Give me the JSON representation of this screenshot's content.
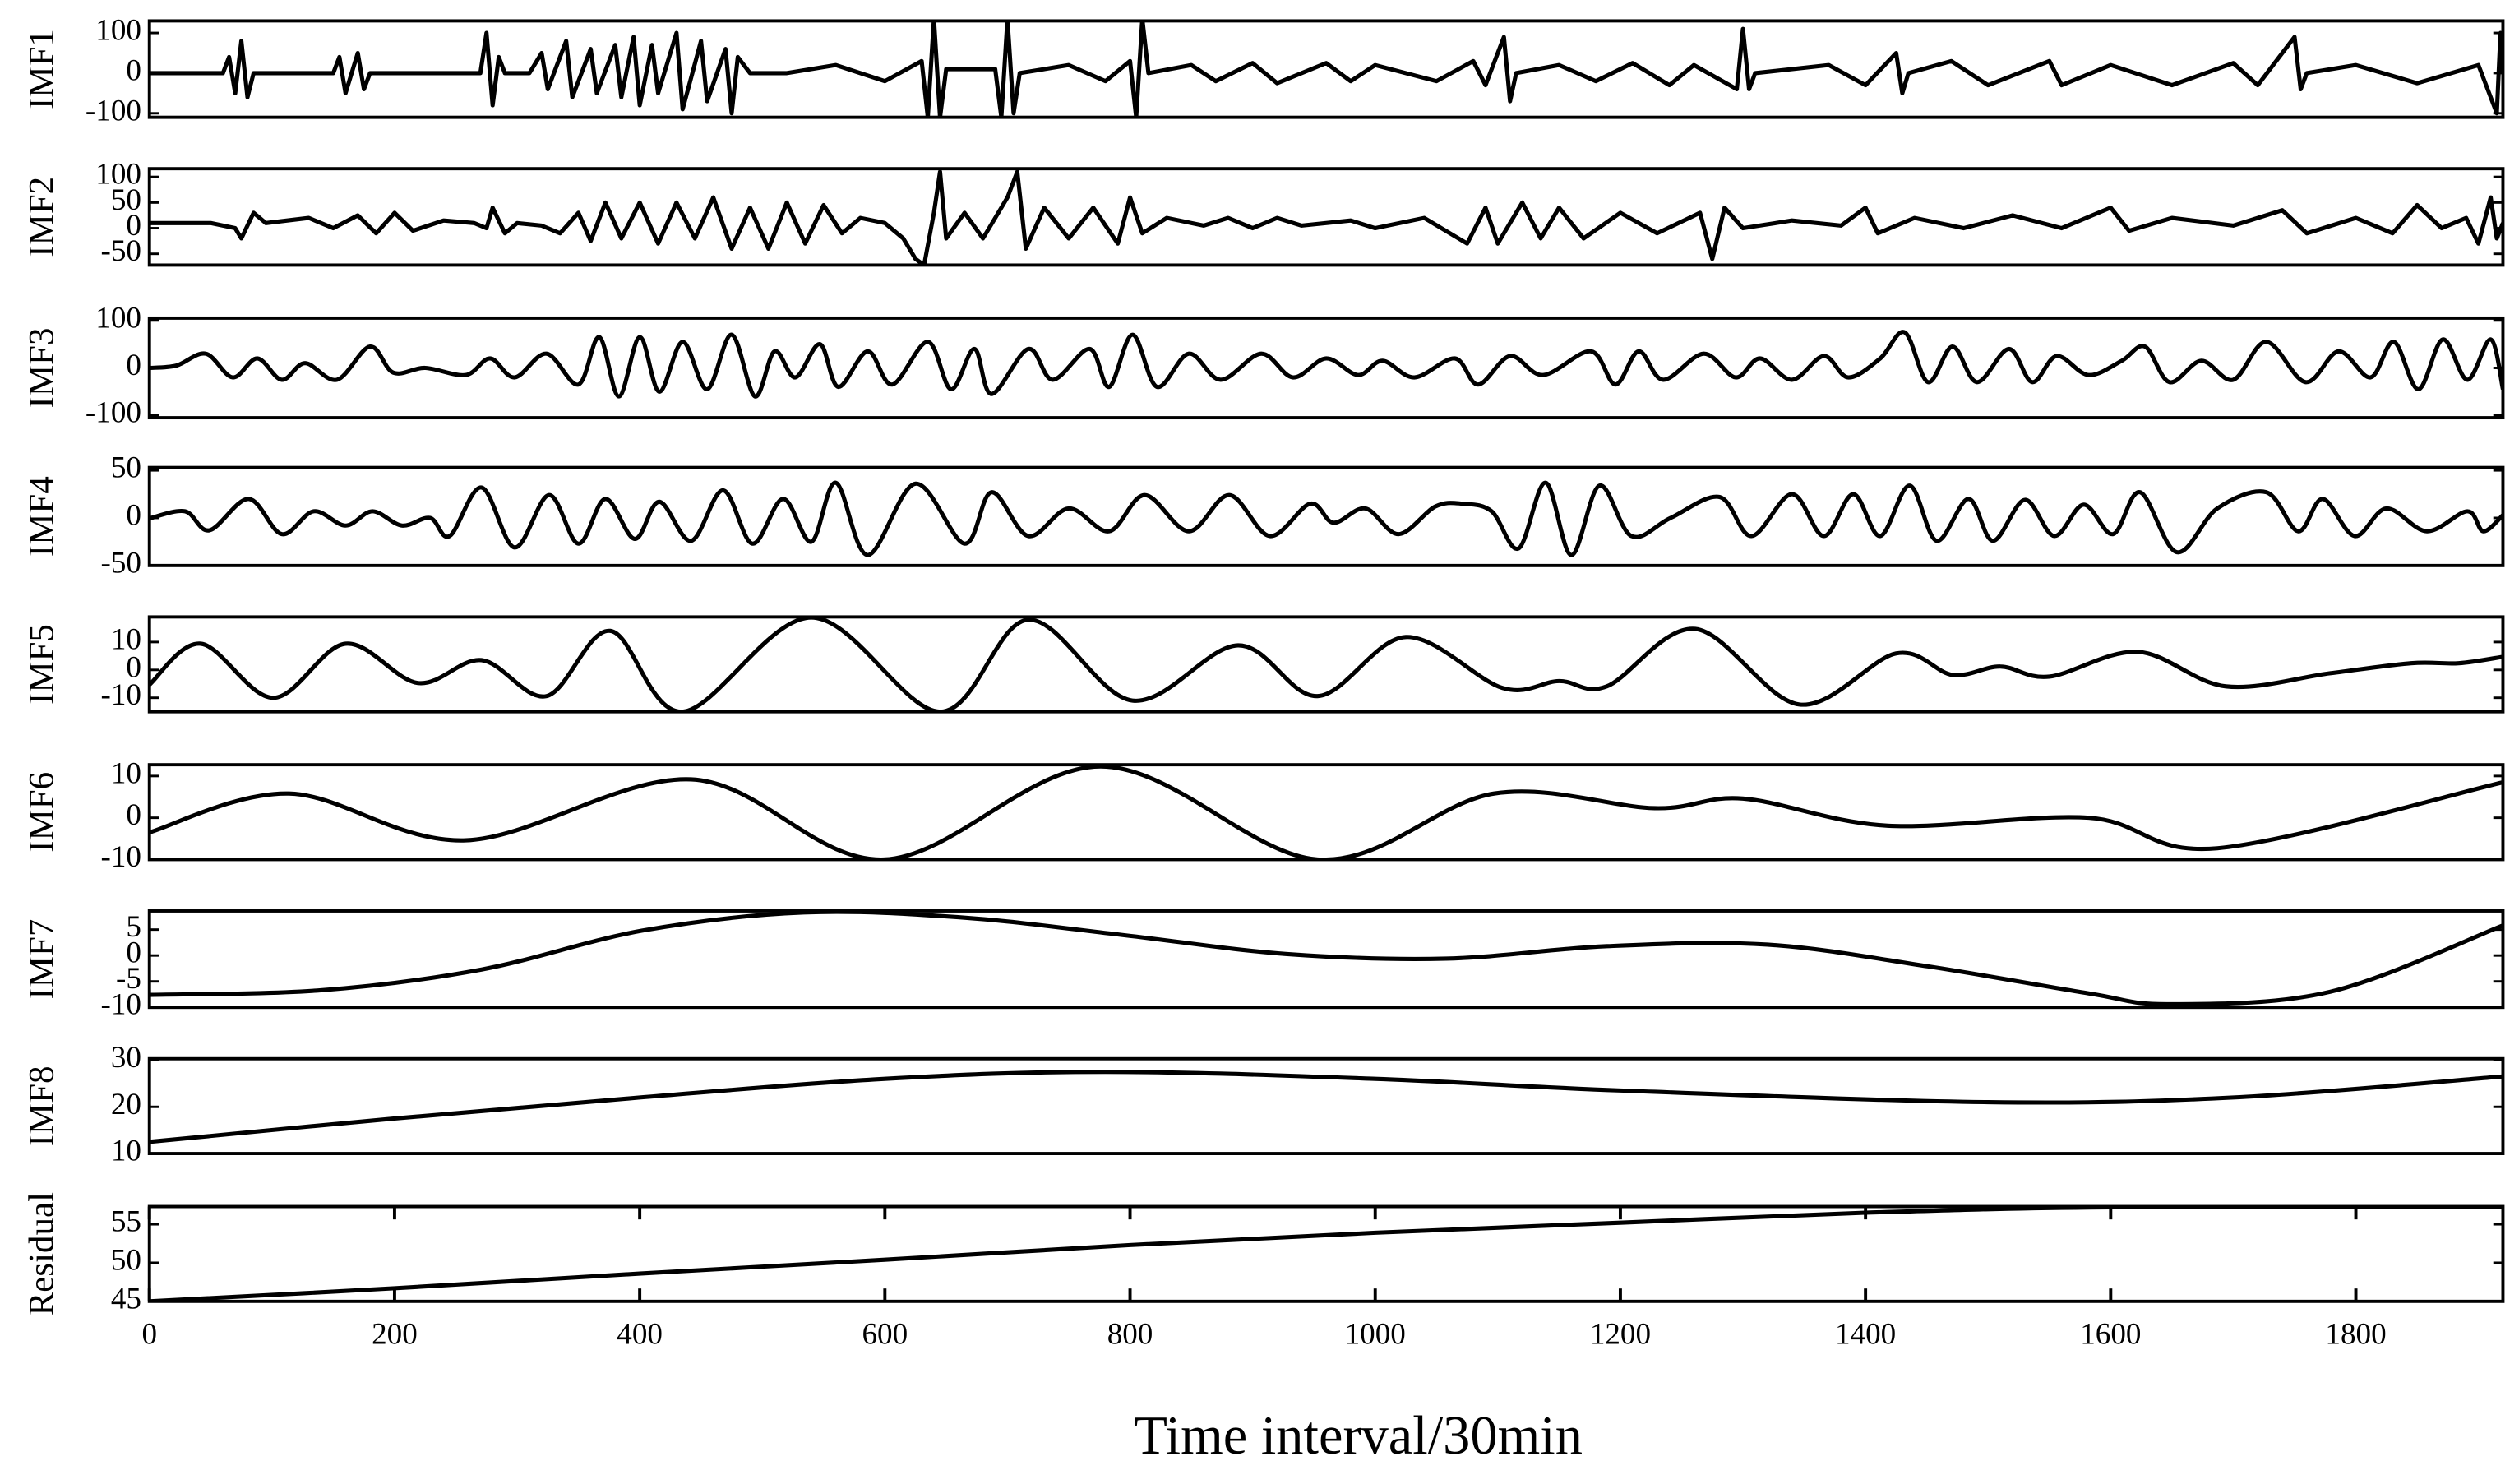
{
  "chart_data": [
    {
      "type": "line",
      "ylabel": "IMF1",
      "color": "#000000",
      "smooth": false,
      "xlim": [
        0,
        1920
      ],
      "ylim": [
        -110,
        130
      ],
      "yticks": [
        -100,
        0,
        100
      ],
      "x": [
        0,
        60,
        65,
        70,
        75,
        80,
        85,
        150,
        155,
        160,
        165,
        170,
        175,
        180,
        270,
        275,
        280,
        285,
        290,
        310,
        320,
        325,
        340,
        345,
        360,
        365,
        380,
        385,
        395,
        400,
        410,
        415,
        430,
        435,
        450,
        455,
        470,
        475,
        480,
        490,
        520,
        560,
        600,
        630,
        635,
        640,
        645,
        650,
        690,
        695,
        700,
        705,
        710,
        750,
        780,
        800,
        805,
        810,
        815,
        850,
        870,
        900,
        920,
        960,
        980,
        1000,
        1050,
        1080,
        1090,
        1105,
        1110,
        1115,
        1150,
        1180,
        1210,
        1240,
        1260,
        1295,
        1300,
        1305,
        1310,
        1370,
        1400,
        1425,
        1430,
        1435,
        1470,
        1500,
        1550,
        1560,
        1600,
        1650,
        1700,
        1720,
        1750,
        1755,
        1760,
        1800,
        1850,
        1900,
        1915,
        1918,
        1920
      ],
      "values": [
        0,
        0,
        40,
        -50,
        80,
        -60,
        0,
        0,
        40,
        -50,
        0,
        50,
        -40,
        0,
        0,
        100,
        -80,
        40,
        0,
        0,
        50,
        -40,
        80,
        -60,
        60,
        -50,
        70,
        -60,
        90,
        -80,
        70,
        -50,
        100,
        -90,
        80,
        -70,
        60,
        -100,
        40,
        0,
        0,
        20,
        -20,
        30,
        -110,
        135,
        -110,
        10,
        10,
        -110,
        135,
        -100,
        0,
        20,
        -20,
        30,
        -110,
        135,
        0,
        20,
        -20,
        25,
        -25,
        25,
        -20,
        20,
        -20,
        30,
        -30,
        90,
        -70,
        0,
        20,
        -20,
        25,
        -30,
        20,
        -40,
        110,
        -40,
        0,
        20,
        -30,
        50,
        -50,
        0,
        30,
        -30,
        30,
        -30,
        20,
        -30,
        25,
        -30,
        90,
        -40,
        0,
        20,
        -25,
        20,
        -100,
        100,
        0
      ]
    },
    {
      "type": "line",
      "ylabel": "IMF2",
      "color": "#000000",
      "smooth": false,
      "xlim": [
        0,
        1920
      ],
      "ylim": [
        -72,
        116
      ],
      "yticks": [
        -50,
        0,
        50,
        100
      ],
      "x": [
        0,
        50,
        70,
        75,
        85,
        95,
        130,
        150,
        170,
        185,
        200,
        215,
        240,
        265,
        275,
        280,
        290,
        300,
        320,
        335,
        350,
        360,
        372,
        385,
        400,
        415,
        430,
        445,
        460,
        475,
        490,
        505,
        520,
        535,
        550,
        565,
        580,
        600,
        615,
        625,
        632,
        640,
        645,
        650,
        665,
        680,
        700,
        708,
        715,
        730,
        750,
        770,
        790,
        800,
        810,
        830,
        860,
        880,
        900,
        920,
        940,
        980,
        1000,
        1040,
        1075,
        1090,
        1100,
        1120,
        1135,
        1150,
        1170,
        1200,
        1230,
        1265,
        1275,
        1285,
        1300,
        1340,
        1380,
        1400,
        1410,
        1440,
        1480,
        1520,
        1560,
        1600,
        1615,
        1650,
        1700,
        1740,
        1760,
        1800,
        1830,
        1850,
        1870,
        1890,
        1900,
        1910,
        1915,
        1920
      ],
      "values": [
        10,
        10,
        0,
        -20,
        30,
        10,
        20,
        0,
        25,
        -10,
        30,
        -5,
        15,
        10,
        0,
        40,
        -10,
        10,
        5,
        -10,
        30,
        -25,
        50,
        -20,
        50,
        -30,
        50,
        -20,
        60,
        -40,
        40,
        -40,
        50,
        -30,
        45,
        -10,
        20,
        10,
        -20,
        -60,
        -72,
        30,
        110,
        -20,
        30,
        -20,
        60,
        110,
        -40,
        40,
        -20,
        40,
        -30,
        60,
        -10,
        20,
        5,
        20,
        0,
        20,
        5,
        15,
        0,
        20,
        -30,
        40,
        -30,
        50,
        -20,
        40,
        -20,
        30,
        -10,
        30,
        -60,
        40,
        0,
        15,
        5,
        40,
        -10,
        20,
        0,
        25,
        0,
        40,
        -5,
        20,
        5,
        35,
        -10,
        20,
        -10,
        45,
        0,
        20,
        -30,
        60,
        -20,
        10
      ]
    },
    {
      "type": "line",
      "ylabel": "IMF3",
      "color": "#000000",
      "smooth": true,
      "xlim": [
        0,
        1920
      ],
      "ylim": [
        -105,
        105
      ],
      "yticks": [
        -100,
        0,
        100
      ],
      "x": [
        0,
        22,
        46,
        68,
        88,
        108,
        127,
        153,
        180,
        199,
        225,
        258,
        278,
        298,
        324,
        350,
        367,
        383,
        400,
        416,
        435,
        455,
        475,
        494,
        510,
        527,
        547,
        562,
        586,
        606,
        635,
        654,
        673,
        687,
        717,
        737,
        767,
        783,
        802,
        822,
        848,
        874,
        907,
        933,
        960,
        986,
        1006,
        1032,
        1065,
        1084,
        1110,
        1137,
        1176,
        1196,
        1215,
        1235,
        1268,
        1294,
        1314,
        1340,
        1366,
        1386,
        1412,
        1432,
        1451,
        1471,
        1491,
        1517,
        1536,
        1556,
        1582,
        1609,
        1628,
        1648,
        1674,
        1700,
        1727,
        1759,
        1786,
        1812,
        1831,
        1851,
        1871,
        1891,
        1910,
        1920
      ],
      "values": [
        0,
        5,
        30,
        -20,
        20,
        -25,
        10,
        -25,
        45,
        -10,
        0,
        -15,
        20,
        -20,
        30,
        -35,
        65,
        -60,
        65,
        -50,
        55,
        -45,
        70,
        -60,
        35,
        -20,
        50,
        -40,
        35,
        -35,
        55,
        -45,
        40,
        -55,
        40,
        -25,
        40,
        -40,
        70,
        -40,
        30,
        -25,
        30,
        -20,
        20,
        -15,
        15,
        -20,
        20,
        -35,
        25,
        -15,
        35,
        -35,
        35,
        -25,
        30,
        -20,
        20,
        -25,
        25,
        -20,
        20,
        75,
        -30,
        45,
        -30,
        40,
        -30,
        25,
        -15,
        15,
        45,
        -30,
        15,
        -25,
        55,
        -30,
        35,
        -20,
        55,
        -45,
        60,
        -25,
        60,
        -45
      ]
    },
    {
      "type": "line",
      "ylabel": "IMF4",
      "color": "#000000",
      "smooth": true,
      "xlim": [
        0,
        1920
      ],
      "ylim": [
        -50,
        53
      ],
      "yticks": [
        -50,
        0,
        50
      ],
      "x": [
        0,
        29,
        49,
        81,
        108,
        134,
        160,
        182,
        206,
        229,
        245,
        271,
        298,
        326,
        350,
        372,
        396,
        416,
        442,
        468,
        492,
        517,
        540,
        560,
        586,
        625,
        665,
        687,
        717,
        750,
        783,
        812,
        848,
        881,
        914,
        947,
        966,
        992,
        1019,
        1049,
        1071,
        1095,
        1117,
        1139,
        1160,
        1183,
        1209,
        1241,
        1281,
        1307,
        1340,
        1366,
        1390,
        1412,
        1436,
        1458,
        1484,
        1504,
        1530,
        1554,
        1578,
        1602,
        1624,
        1654,
        1687,
        1727,
        1753,
        1773,
        1799,
        1825,
        1858,
        1891,
        1904,
        1920
      ],
      "values": [
        -0.5,
        7,
        -13,
        20,
        -17,
        7,
        -8,
        7,
        -8,
        0,
        -19,
        32,
        -31,
        24,
        -27,
        20,
        -22,
        17,
        -24,
        29,
        -27,
        20,
        -25,
        37,
        -39,
        36,
        -27,
        27,
        -19,
        10,
        -14,
        24,
        -14,
        24,
        -19,
        15,
        -5,
        10,
        -17,
        12,
        15,
        7,
        -32,
        37,
        -39,
        34,
        -19,
        0,
        22,
        -19,
        25,
        -19,
        25,
        -19,
        34,
        -24,
        20,
        -24,
        19,
        -19,
        14,
        -17,
        27,
        -36,
        10,
        27,
        -14,
        20,
        -19,
        10,
        -14,
        7,
        -14,
        3
      ]
    },
    {
      "type": "line",
      "ylabel": "IMF5",
      "color": "#000000",
      "smooth": true,
      "xlim": [
        0,
        1920
      ],
      "ylim": [
        -15,
        19
      ],
      "yticks": [
        -10,
        0,
        10
      ],
      "x": [
        0,
        42,
        101,
        160,
        219,
        271,
        324,
        376,
        435,
        540,
        645,
        717,
        802,
        888,
        953,
        1025,
        1104,
        1150,
        1189,
        1261,
        1346,
        1425,
        1471,
        1510,
        1550,
        1622,
        1694,
        1779,
        1845,
        1884,
        1920
      ],
      "values": [
        -5.3,
        9.4,
        -10,
        9.4,
        -4.7,
        3.5,
        -9.4,
        14,
        -15,
        18.8,
        -15,
        18,
        -11,
        8.8,
        -9.4,
        11.8,
        -6.5,
        -4,
        -5.9,
        14.7,
        -12.4,
        5.9,
        -1.8,
        1.2,
        -2.4,
        6.5,
        -5.9,
        -1.2,
        2.4,
        2.4,
        4.7
      ]
    },
    {
      "type": "line",
      "ylabel": "IMF6",
      "color": "#000000",
      "smooth": true,
      "xlim": [
        0,
        1920
      ],
      "ylim": [
        -10,
        12.7
      ],
      "yticks": [
        -10,
        0,
        10
      ],
      "x": [
        0,
        114,
        258,
        442,
        599,
        776,
        953,
        1097,
        1228,
        1300,
        1418,
        1582,
        1687,
        1920
      ],
      "values": [
        -3.5,
        5.8,
        -5.4,
        9.2,
        -10,
        12.3,
        -10,
        5.8,
        2.3,
        4.6,
        -1.9,
        0,
        -7.3,
        8.5
      ]
    },
    {
      "type": "line",
      "ylabel": "IMF7",
      "color": "#000000",
      "smooth": true,
      "xlim": [
        0,
        1920
      ],
      "ylim": [
        -10,
        8.6
      ],
      "yticks": [
        -10,
        -5,
        0,
        5
      ],
      "x": [
        0,
        140,
        271,
        402,
        534,
        665,
        796,
        927,
        1058,
        1189,
        1320,
        1451,
        1582,
        1648,
        1779,
        1920
      ],
      "values": [
        -7.6,
        -6.7,
        -2.7,
        4.8,
        8.3,
        7.3,
        3.9,
        0.3,
        -0.6,
        1.8,
        2.1,
        -2.1,
        -7.3,
        -9.4,
        -7,
        5.8
      ]
    },
    {
      "type": "line",
      "ylabel": "IMF8",
      "color": "#000000",
      "smooth": true,
      "xlim": [
        0,
        1920
      ],
      "ylim": [
        10,
        30.3
      ],
      "yticks": [
        10,
        20,
        30
      ],
      "x": [
        0,
        200,
        400,
        600,
        780,
        1000,
        1200,
        1500,
        1700,
        1920
      ],
      "values": [
        12.5,
        17.5,
        22,
        26,
        27.5,
        26,
        23.5,
        21,
        22,
        26.5
      ]
    },
    {
      "type": "line",
      "ylabel": "Residual",
      "color": "#000000",
      "smooth": true,
      "xlim": [
        0,
        1920
      ],
      "ylim": [
        45,
        57.3
      ],
      "yticks": [
        45,
        50,
        55
      ],
      "xticks": [
        0,
        200,
        400,
        600,
        800,
        1000,
        1200,
        1400,
        1600,
        1800
      ],
      "xlabel": "Time interval/30min",
      "x": [
        0,
        200,
        400,
        600,
        800,
        1000,
        1200,
        1400,
        1600,
        1920
      ],
      "values": [
        45,
        46.7,
        48.6,
        50.4,
        52.3,
        53.9,
        55.2,
        56.5,
        57.2,
        57.3
      ]
    }
  ]
}
